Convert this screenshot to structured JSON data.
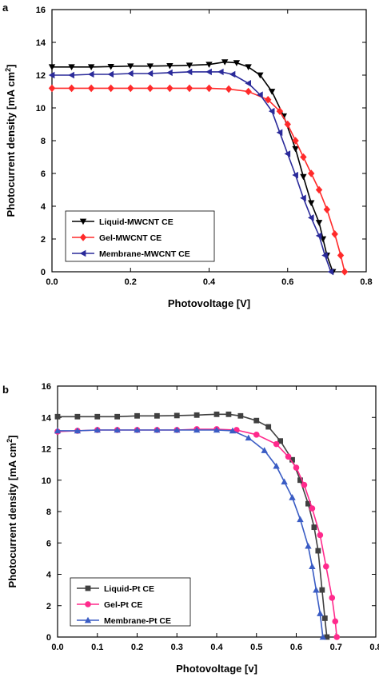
{
  "chart_data": [
    {
      "type": "line",
      "panel_label": "a",
      "xlabel": "Photovoltage [V]",
      "ylabel": "Photocurrent density [mA cm",
      "ylabel_sup": "2",
      "ylabel_close": "]",
      "xlim": [
        0,
        0.8
      ],
      "ylim": [
        0,
        16
      ],
      "xticks": [
        "0.0",
        "0.2",
        "0.4",
        "0.6",
        "0.8"
      ],
      "xtick_values": [
        0,
        0.2,
        0.4,
        0.6,
        0.8
      ],
      "yticks": [
        "0",
        "2",
        "4",
        "6",
        "8",
        "10",
        "12",
        "14",
        "16"
      ],
      "ytick_values": [
        0,
        2,
        4,
        6,
        8,
        10,
        12,
        14,
        16
      ],
      "legend_position": "bottom-left",
      "grid": false,
      "series": [
        {
          "name": "Liquid-MWCNT CE",
          "color": "#000000",
          "marker": "triangle-down",
          "points": [
            [
              0.0,
              12.5
            ],
            [
              0.05,
              12.5
            ],
            [
              0.1,
              12.5
            ],
            [
              0.15,
              12.52
            ],
            [
              0.2,
              12.55
            ],
            [
              0.25,
              12.55
            ],
            [
              0.3,
              12.57
            ],
            [
              0.35,
              12.6
            ],
            [
              0.4,
              12.65
            ],
            [
              0.44,
              12.8
            ],
            [
              0.47,
              12.75
            ],
            [
              0.5,
              12.5
            ],
            [
              0.53,
              12.0
            ],
            [
              0.56,
              11.0
            ],
            [
              0.59,
              9.5
            ],
            [
              0.62,
              7.5
            ],
            [
              0.64,
              5.8
            ],
            [
              0.66,
              4.2
            ],
            [
              0.68,
              3.0
            ],
            [
              0.69,
              2.0
            ],
            [
              0.7,
              1.0
            ],
            [
              0.715,
              0.0
            ]
          ]
        },
        {
          "name": "Gel-MWCNT CE",
          "color": "#ff2a2a",
          "marker": "diamond",
          "points": [
            [
              0.0,
              11.2
            ],
            [
              0.05,
              11.2
            ],
            [
              0.1,
              11.2
            ],
            [
              0.15,
              11.2
            ],
            [
              0.2,
              11.2
            ],
            [
              0.25,
              11.2
            ],
            [
              0.3,
              11.2
            ],
            [
              0.35,
              11.2
            ],
            [
              0.4,
              11.2
            ],
            [
              0.45,
              11.15
            ],
            [
              0.5,
              11.0
            ],
            [
              0.55,
              10.5
            ],
            [
              0.58,
              9.8
            ],
            [
              0.6,
              9.0
            ],
            [
              0.62,
              8.0
            ],
            [
              0.64,
              7.0
            ],
            [
              0.66,
              6.0
            ],
            [
              0.68,
              5.0
            ],
            [
              0.7,
              3.8
            ],
            [
              0.72,
              2.3
            ],
            [
              0.735,
              1.0
            ],
            [
              0.745,
              0.0
            ]
          ]
        },
        {
          "name": "Membrane-MWCNT CE",
          "color": "#2a2a9a",
          "marker": "triangle-left",
          "points": [
            [
              0.0,
              12.0
            ],
            [
              0.05,
              12.0
            ],
            [
              0.1,
              12.05
            ],
            [
              0.15,
              12.05
            ],
            [
              0.2,
              12.1
            ],
            [
              0.25,
              12.1
            ],
            [
              0.3,
              12.15
            ],
            [
              0.35,
              12.2
            ],
            [
              0.4,
              12.2
            ],
            [
              0.43,
              12.2
            ],
            [
              0.46,
              12.05
            ],
            [
              0.5,
              11.5
            ],
            [
              0.53,
              10.8
            ],
            [
              0.56,
              9.8
            ],
            [
              0.58,
              8.5
            ],
            [
              0.6,
              7.2
            ],
            [
              0.62,
              5.9
            ],
            [
              0.64,
              4.5
            ],
            [
              0.66,
              3.3
            ],
            [
              0.68,
              2.2
            ],
            [
              0.695,
              1.0
            ],
            [
              0.71,
              0.0
            ]
          ]
        }
      ]
    },
    {
      "type": "line",
      "panel_label": "b",
      "xlabel": "Photovoltage [v]",
      "ylabel": "Photocurrent density [mA cm",
      "ylabel_sup": "2",
      "ylabel_close": "]",
      "xlim": [
        0,
        0.8
      ],
      "ylim": [
        0,
        16
      ],
      "xticks": [
        "0.0",
        "0.1",
        "0.2",
        "0.3",
        "0.4",
        "0.5",
        "0.6",
        "0.7",
        "0.8"
      ],
      "xtick_values": [
        0,
        0.1,
        0.2,
        0.3,
        0.4,
        0.5,
        0.6,
        0.7,
        0.8
      ],
      "yticks": [
        "0",
        "2",
        "4",
        "6",
        "8",
        "10",
        "12",
        "14",
        "16"
      ],
      "ytick_values": [
        0,
        2,
        4,
        6,
        8,
        10,
        12,
        14,
        16
      ],
      "legend_position": "bottom-left",
      "grid": false,
      "series": [
        {
          "name": "Liquid-Pt CE",
          "color": "#404040",
          "marker": "square",
          "points": [
            [
              0.0,
              14.05
            ],
            [
              0.05,
              14.05
            ],
            [
              0.1,
              14.05
            ],
            [
              0.15,
              14.05
            ],
            [
              0.2,
              14.1
            ],
            [
              0.25,
              14.1
            ],
            [
              0.3,
              14.12
            ],
            [
              0.35,
              14.15
            ],
            [
              0.4,
              14.2
            ],
            [
              0.43,
              14.2
            ],
            [
              0.46,
              14.1
            ],
            [
              0.5,
              13.8
            ],
            [
              0.53,
              13.4
            ],
            [
              0.56,
              12.5
            ],
            [
              0.59,
              11.3
            ],
            [
              0.61,
              10.0
            ],
            [
              0.63,
              8.5
            ],
            [
              0.645,
              7.0
            ],
            [
              0.655,
              5.5
            ],
            [
              0.665,
              3.0
            ],
            [
              0.672,
              1.2
            ],
            [
              0.677,
              0.0
            ]
          ]
        },
        {
          "name": "Gel-Pt CE",
          "color": "#ff2a8c",
          "marker": "circle",
          "points": [
            [
              0.0,
              13.1
            ],
            [
              0.05,
              13.15
            ],
            [
              0.1,
              13.2
            ],
            [
              0.15,
              13.2
            ],
            [
              0.2,
              13.2
            ],
            [
              0.25,
              13.2
            ],
            [
              0.3,
              13.2
            ],
            [
              0.35,
              13.25
            ],
            [
              0.4,
              13.25
            ],
            [
              0.45,
              13.2
            ],
            [
              0.5,
              12.9
            ],
            [
              0.55,
              12.3
            ],
            [
              0.58,
              11.5
            ],
            [
              0.6,
              10.8
            ],
            [
              0.62,
              9.7
            ],
            [
              0.64,
              8.2
            ],
            [
              0.66,
              6.5
            ],
            [
              0.675,
              4.5
            ],
            [
              0.69,
              2.5
            ],
            [
              0.698,
              1.0
            ],
            [
              0.702,
              0.0
            ]
          ]
        },
        {
          "name": "Membrane-Pt CE",
          "color": "#3a5cc4",
          "marker": "triangle-up",
          "points": [
            [
              0.0,
              13.15
            ],
            [
              0.05,
              13.15
            ],
            [
              0.1,
              13.2
            ],
            [
              0.15,
              13.2
            ],
            [
              0.2,
              13.2
            ],
            [
              0.25,
              13.2
            ],
            [
              0.3,
              13.2
            ],
            [
              0.35,
              13.2
            ],
            [
              0.4,
              13.2
            ],
            [
              0.44,
              13.15
            ],
            [
              0.48,
              12.7
            ],
            [
              0.52,
              11.9
            ],
            [
              0.55,
              10.9
            ],
            [
              0.57,
              9.9
            ],
            [
              0.59,
              8.9
            ],
            [
              0.61,
              7.5
            ],
            [
              0.63,
              5.8
            ],
            [
              0.64,
              4.5
            ],
            [
              0.65,
              3.0
            ],
            [
              0.66,
              1.5
            ],
            [
              0.667,
              0.0
            ]
          ]
        }
      ]
    }
  ]
}
